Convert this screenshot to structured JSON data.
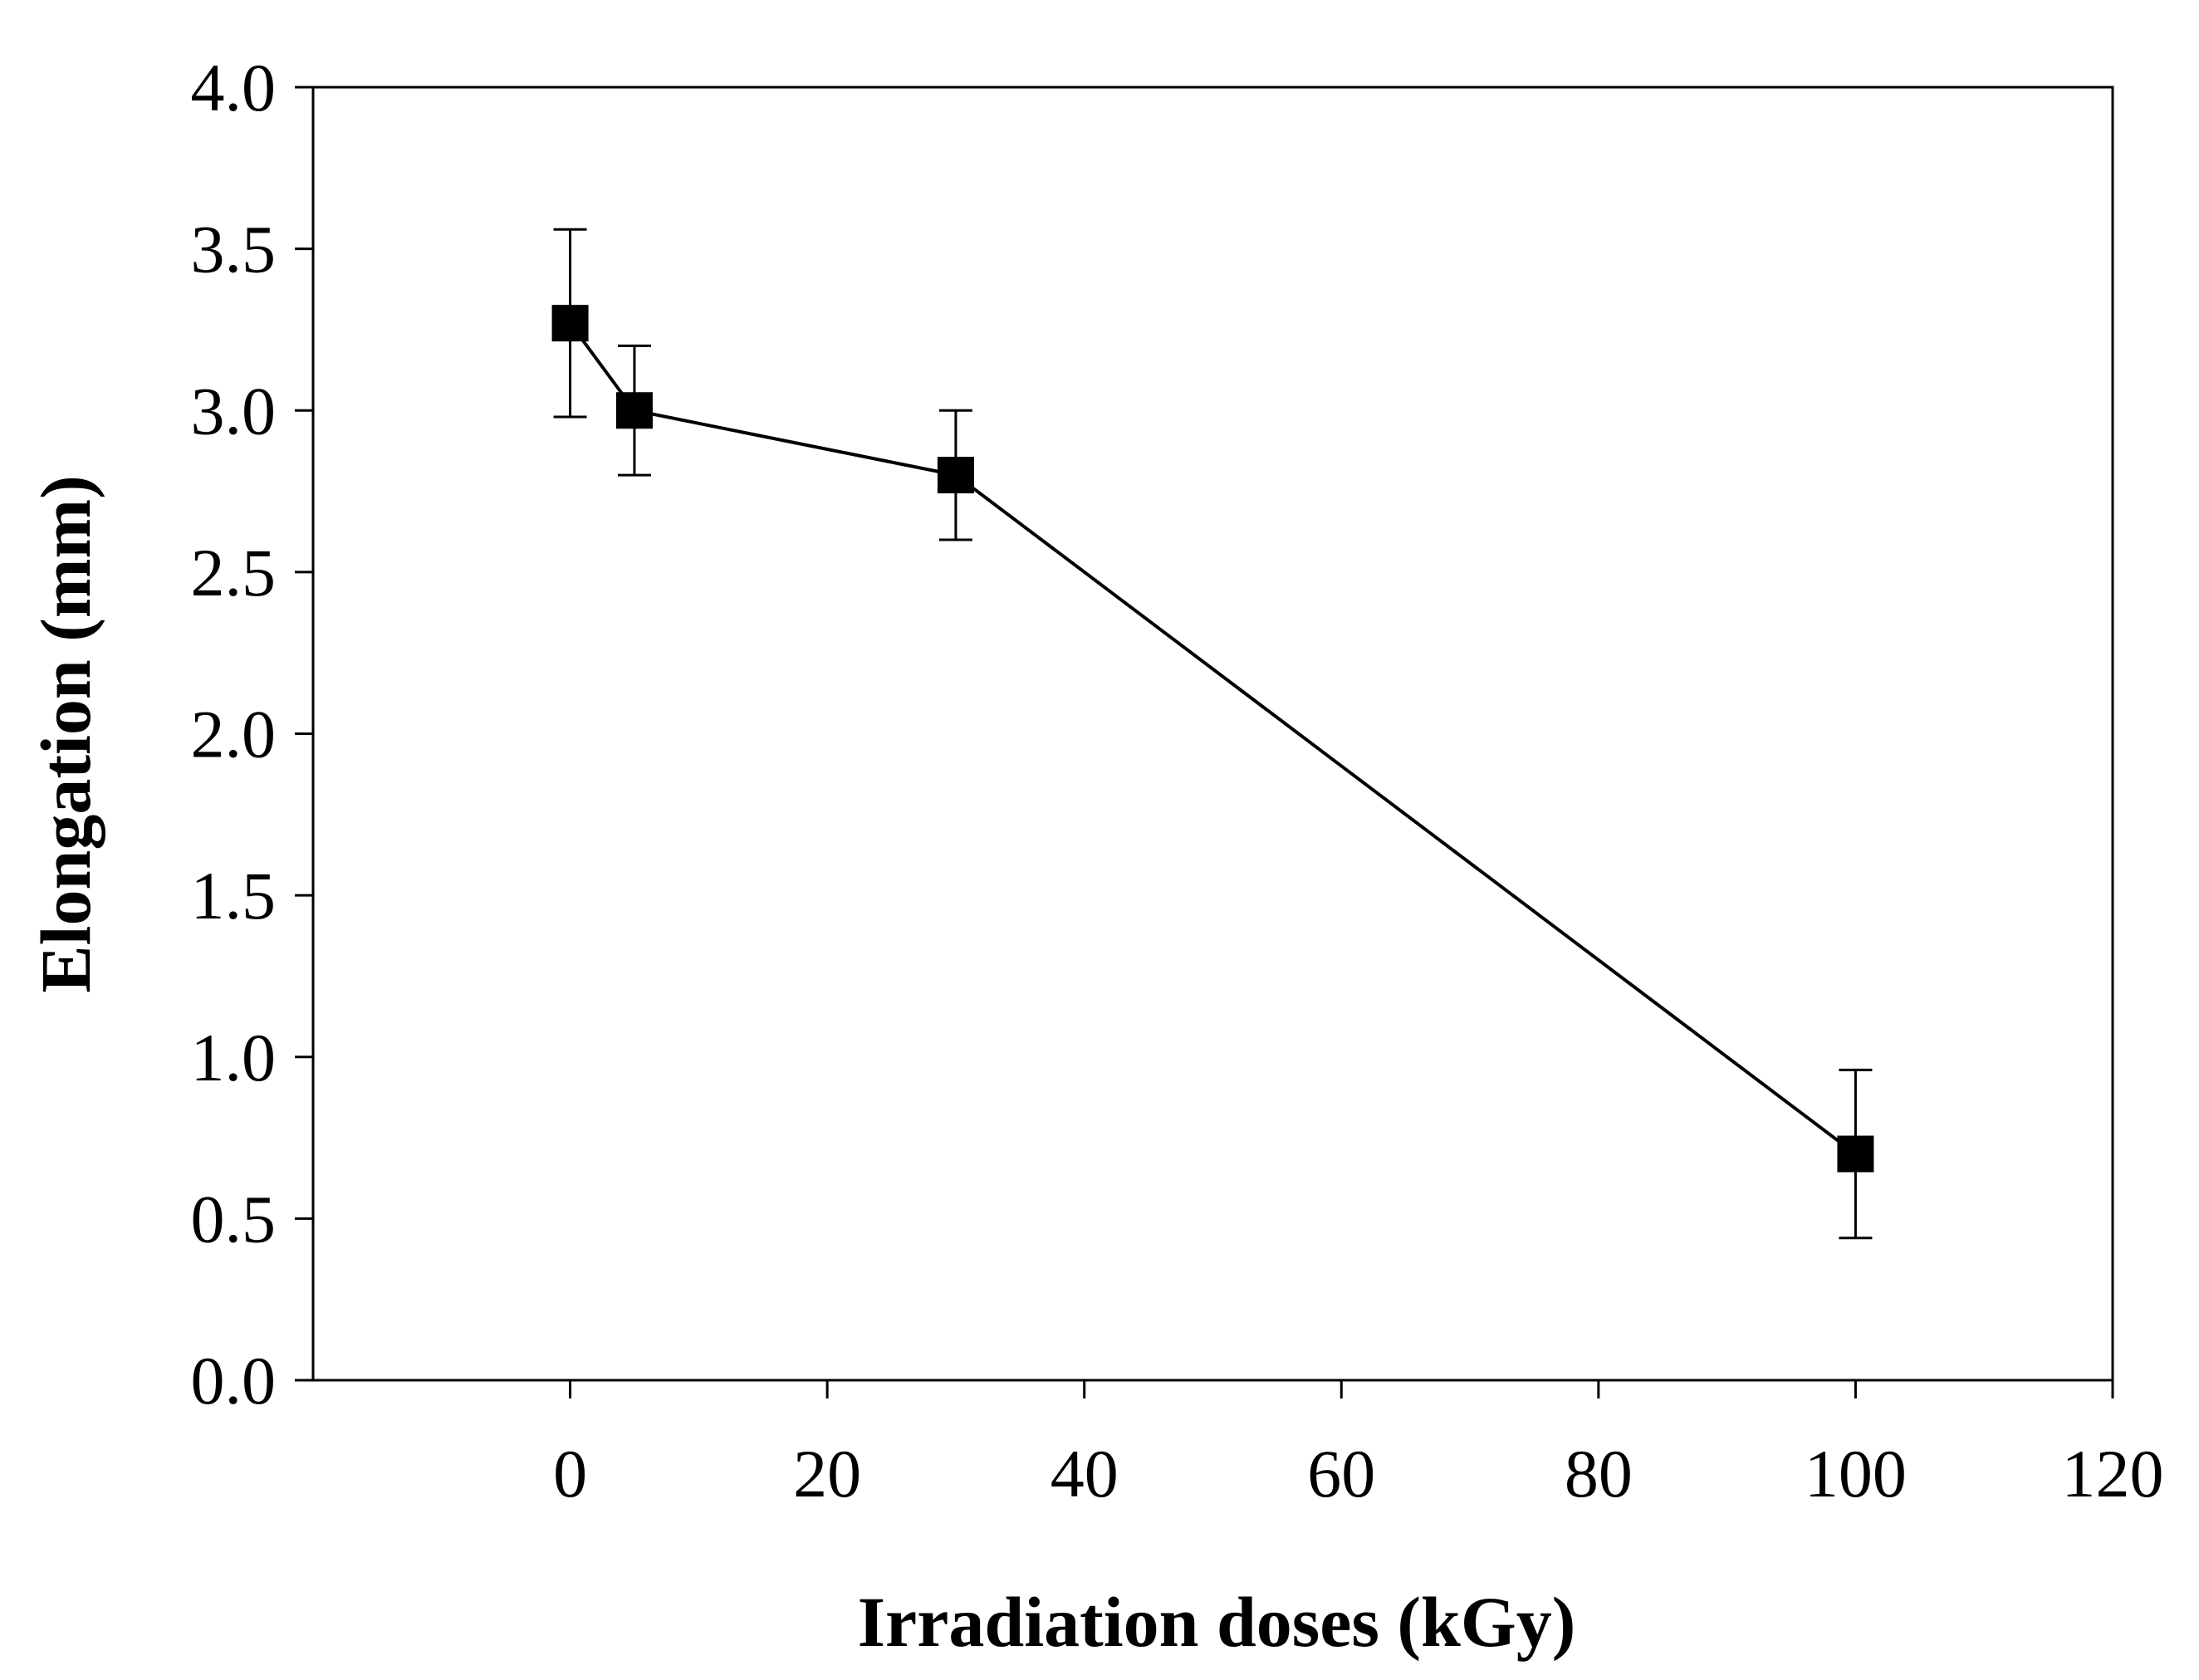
{
  "chart_data": {
    "type": "line",
    "title": "",
    "xlabel": "Irradiation doses (kGy)",
    "ylabel": "Elongation (mm)",
    "xlim": [
      -20,
      120
    ],
    "ylim": [
      0,
      4
    ],
    "x_ticks": [
      0,
      20,
      40,
      60,
      80,
      100,
      120
    ],
    "y_ticks": [
      0.0,
      0.5,
      1.0,
      1.5,
      2.0,
      2.5,
      3.0,
      3.5,
      4.0
    ],
    "x_tick_labels": [
      "0",
      "20",
      "40",
      "60",
      "80",
      "100",
      "120"
    ],
    "y_tick_labels": [
      "0.0",
      "0.5",
      "1.0",
      "1.5",
      "2.0",
      "2.5",
      "3.0",
      "3.5",
      "4.0"
    ],
    "grid": false,
    "legend": "none",
    "series": [
      {
        "name": "Elongation",
        "marker": "square",
        "color": "#000000",
        "x": [
          0,
          5,
          30,
          100
        ],
        "y": [
          3.27,
          3.0,
          2.8,
          0.7
        ],
        "error": [
          0.29,
          0.2,
          0.2,
          0.26
        ]
      }
    ]
  }
}
